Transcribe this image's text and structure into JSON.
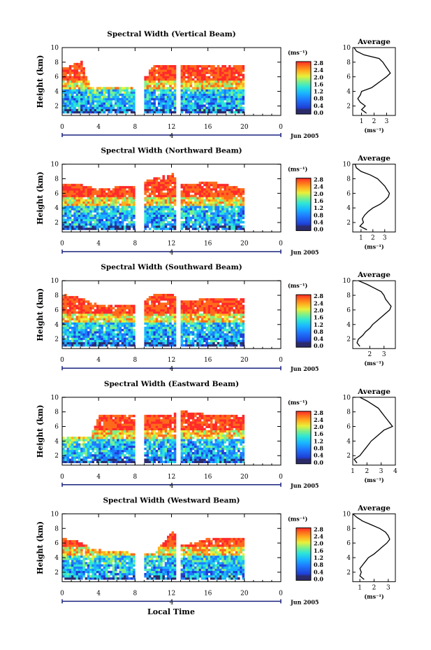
{
  "figure": {
    "date_label": "Jun 2005",
    "xlabel": "Local Time",
    "ylabel": "Height (km)",
    "unit_label": "(ms⁻¹)",
    "profile_title": "Average",
    "profile_xlabel": "(ms⁻¹)",
    "day_label": "4",
    "colorscale": [
      "#2b2b6b",
      "#1f3fd6",
      "#1e7bff",
      "#19b6ff",
      "#2ee6d6",
      "#7df08a",
      "#e8f03a",
      "#ffb020",
      "#ff6a1a",
      "#ff2a2a"
    ],
    "missing_color": "#ffffff"
  },
  "chart_data": [
    {
      "type": "heatmap",
      "name": "vertical",
      "title": "Spectral Width (Vertical Beam)",
      "x_ticks": [
        "0",
        "4",
        "8",
        "12",
        "16",
        "20",
        "0"
      ],
      "y_ticks": [
        "2",
        "4",
        "6",
        "8",
        "10"
      ],
      "xlim": [
        0,
        24
      ],
      "ylim": [
        0.7,
        10
      ],
      "colorbar_ticks": [
        "0.0",
        "0.4",
        "0.8",
        "1.2",
        "1.6",
        "2.0",
        "2.4",
        "2.8"
      ],
      "data_gaps_hours": [
        [
          8,
          9
        ],
        [
          12.5,
          13
        ]
      ],
      "top_height_km": [
        [
          0,
          7
        ],
        [
          2,
          8
        ],
        [
          3,
          4.5
        ],
        [
          8,
          4.5
        ],
        [
          10,
          7.5
        ],
        [
          12,
          7.5
        ],
        [
          13,
          7.5
        ],
        [
          16,
          7.5
        ],
        [
          20,
          7.5
        ]
      ],
      "profile": {
        "xticks": [
          "1",
          "2",
          "3"
        ],
        "yticks": [
          "2",
          "4",
          "6",
          "8",
          "10"
        ],
        "xlim": [
          0.3,
          3.7
        ],
        "height_km": [
          1,
          1.5,
          2,
          2.5,
          3,
          3.5,
          4,
          4.5,
          5,
          5.5,
          6,
          6.5,
          7,
          7.5,
          8,
          8.5,
          9,
          9.5,
          10
        ],
        "values": [
          1.4,
          1.0,
          1.3,
          0.9,
          0.7,
          0.9,
          1.0,
          1.8,
          2.2,
          2.6,
          3.0,
          3.3,
          3.1,
          2.9,
          2.7,
          2.4,
          1.2,
          0.6,
          0.4
        ]
      }
    },
    {
      "type": "heatmap",
      "name": "northward",
      "title": "Spectral Width (Northward Beam)",
      "x_ticks": [
        "0",
        "4",
        "8",
        "12",
        "16",
        "20",
        "0"
      ],
      "y_ticks": [
        "2",
        "4",
        "6",
        "8",
        "10"
      ],
      "xlim": [
        0,
        24
      ],
      "ylim": [
        0.7,
        10
      ],
      "colorbar_ticks": [
        "0.0",
        "0.4",
        "0.8",
        "1.2",
        "1.6",
        "2.0",
        "2.4",
        "2.8"
      ],
      "data_gaps_hours": [
        [
          8,
          9
        ],
        [
          12.5,
          13
        ]
      ],
      "top_height_km": [
        [
          0,
          7
        ],
        [
          2,
          7
        ],
        [
          4,
          6.5
        ],
        [
          8,
          7
        ],
        [
          10,
          8
        ],
        [
          12,
          8.5
        ],
        [
          13,
          7
        ],
        [
          16,
          7.5
        ],
        [
          20,
          6.5
        ]
      ],
      "profile": {
        "xticks": [
          "1",
          "2",
          "3"
        ],
        "yticks": [
          "2",
          "4",
          "6",
          "8",
          "10"
        ],
        "xlim": [
          0.3,
          3.9
        ],
        "height_km": [
          1,
          1.5,
          2,
          2.5,
          3,
          3.5,
          4,
          4.5,
          5,
          5.5,
          6,
          6.5,
          7,
          7.5,
          8,
          8.5,
          9,
          9.5,
          10
        ],
        "values": [
          1.5,
          0.9,
          1.2,
          1.1,
          1.3,
          1.6,
          2.0,
          2.6,
          3.0,
          3.3,
          3.4,
          3.2,
          3.0,
          2.7,
          2.4,
          1.8,
          1.0,
          0.6,
          0.5
        ]
      }
    },
    {
      "type": "heatmap",
      "name": "southward",
      "title": "Spectral Width (Southward Beam)",
      "x_ticks": [
        "0",
        "4",
        "8",
        "12",
        "16",
        "20",
        "0"
      ],
      "y_ticks": [
        "2",
        "4",
        "6",
        "8",
        "10"
      ],
      "xlim": [
        0,
        24
      ],
      "ylim": [
        0.7,
        10
      ],
      "colorbar_ticks": [
        "0.0",
        "0.4",
        "0.8",
        "1.2",
        "1.6",
        "2.0",
        "2.4",
        "2.8"
      ],
      "data_gaps_hours": [
        [
          8,
          9
        ],
        [
          12.5,
          13
        ]
      ],
      "top_height_km": [
        [
          0,
          8
        ],
        [
          2,
          7.5
        ],
        [
          4,
          6.5
        ],
        [
          8,
          6.5
        ],
        [
          10,
          8
        ],
        [
          12,
          8
        ],
        [
          13,
          7
        ],
        [
          16,
          7.5
        ],
        [
          20,
          7.5
        ]
      ],
      "profile": {
        "xticks": [
          "2",
          "3"
        ],
        "yticks": [
          "2",
          "4",
          "6",
          "8",
          "10"
        ],
        "xlim": [
          0.8,
          3.8
        ],
        "height_km": [
          1,
          1.5,
          2,
          2.5,
          3,
          3.5,
          4,
          4.5,
          5,
          5.5,
          6,
          6.5,
          7,
          7.5,
          8,
          8.5,
          9,
          9.5,
          10
        ],
        "values": [
          1.3,
          1.1,
          1.2,
          1.5,
          1.7,
          2.0,
          2.2,
          2.5,
          2.8,
          3.1,
          3.4,
          3.5,
          3.3,
          3.1,
          3.0,
          2.8,
          2.3,
          1.8,
          1.2
        ]
      }
    },
    {
      "type": "heatmap",
      "name": "eastward",
      "title": "Spectral Width (Eastward Beam)",
      "x_ticks": [
        "0",
        "4",
        "8",
        "12",
        "16",
        "20",
        "0"
      ],
      "y_ticks": [
        "2",
        "4",
        "6",
        "8",
        "10"
      ],
      "xlim": [
        0,
        24
      ],
      "ylim": [
        0.7,
        10
      ],
      "colorbar_ticks": [
        "0.0",
        "0.4",
        "0.8",
        "1.2",
        "1.6",
        "2.0",
        "2.4",
        "2.8"
      ],
      "data_gaps_hours": [
        [
          8,
          9
        ],
        [
          12.5,
          13
        ]
      ],
      "top_height_km": [
        [
          0,
          4.5
        ],
        [
          3,
          4.5
        ],
        [
          4,
          7.5
        ],
        [
          8,
          7.5
        ],
        [
          10,
          7.5
        ],
        [
          12,
          7.5
        ],
        [
          13,
          8
        ],
        [
          16,
          7.5
        ],
        [
          20,
          7.5
        ]
      ],
      "profile": {
        "xticks": [
          "1",
          "2",
          "3",
          "4"
        ],
        "yticks": [
          "2",
          "4",
          "6",
          "8",
          "10"
        ],
        "xlim": [
          1,
          4
        ],
        "height_km": [
          1,
          1.5,
          2,
          2.5,
          3,
          3.5,
          4,
          4.5,
          5,
          5.5,
          6,
          6.5,
          7,
          7.5,
          8,
          8.5,
          9,
          9.5,
          10
        ],
        "values": [
          1.3,
          1.1,
          1.5,
          1.7,
          1.9,
          2.1,
          2.3,
          2.6,
          2.9,
          3.2,
          3.8,
          3.6,
          3.4,
          3.2,
          3.0,
          2.8,
          2.4,
          2.0,
          1.5
        ]
      }
    },
    {
      "type": "heatmap",
      "name": "westward",
      "title": "Spectral Width (Westward Beam)",
      "x_ticks": [
        "0",
        "4",
        "8",
        "12",
        "16",
        "20",
        "0"
      ],
      "y_ticks": [
        "2",
        "4",
        "6",
        "8",
        "10"
      ],
      "xlim": [
        0,
        24
      ],
      "ylim": [
        0.7,
        10
      ],
      "colorbar_ticks": [
        "0.0",
        "0.4",
        "0.8",
        "1.2",
        "1.6",
        "2.0",
        "2.4",
        "2.8"
      ],
      "data_gaps_hours": [
        [
          8,
          9
        ],
        [
          12.5,
          13
        ]
      ],
      "top_height_km": [
        [
          0,
          6.5
        ],
        [
          2,
          6
        ],
        [
          3,
          5
        ],
        [
          8,
          4.5
        ],
        [
          10,
          4.5
        ],
        [
          12,
          7.5
        ],
        [
          13,
          5.5
        ],
        [
          16,
          6.5
        ],
        [
          20,
          6.5
        ]
      ],
      "profile": {
        "xticks": [
          "1",
          "2",
          "3"
        ],
        "yticks": [
          "2",
          "4",
          "6",
          "8",
          "10"
        ],
        "xlim": [
          0.5,
          3.5
        ],
        "height_km": [
          1,
          1.5,
          2,
          2.5,
          3,
          3.5,
          4,
          4.5,
          5,
          5.5,
          6,
          6.5,
          7,
          7.5,
          8,
          8.5,
          9,
          9.5,
          10
        ],
        "values": [
          1.3,
          1.0,
          1.1,
          1.0,
          1.2,
          1.4,
          1.6,
          2.0,
          2.3,
          2.6,
          2.9,
          3.1,
          3.0,
          2.8,
          2.4,
          1.8,
          1.2,
          0.8,
          0.5
        ]
      }
    }
  ]
}
